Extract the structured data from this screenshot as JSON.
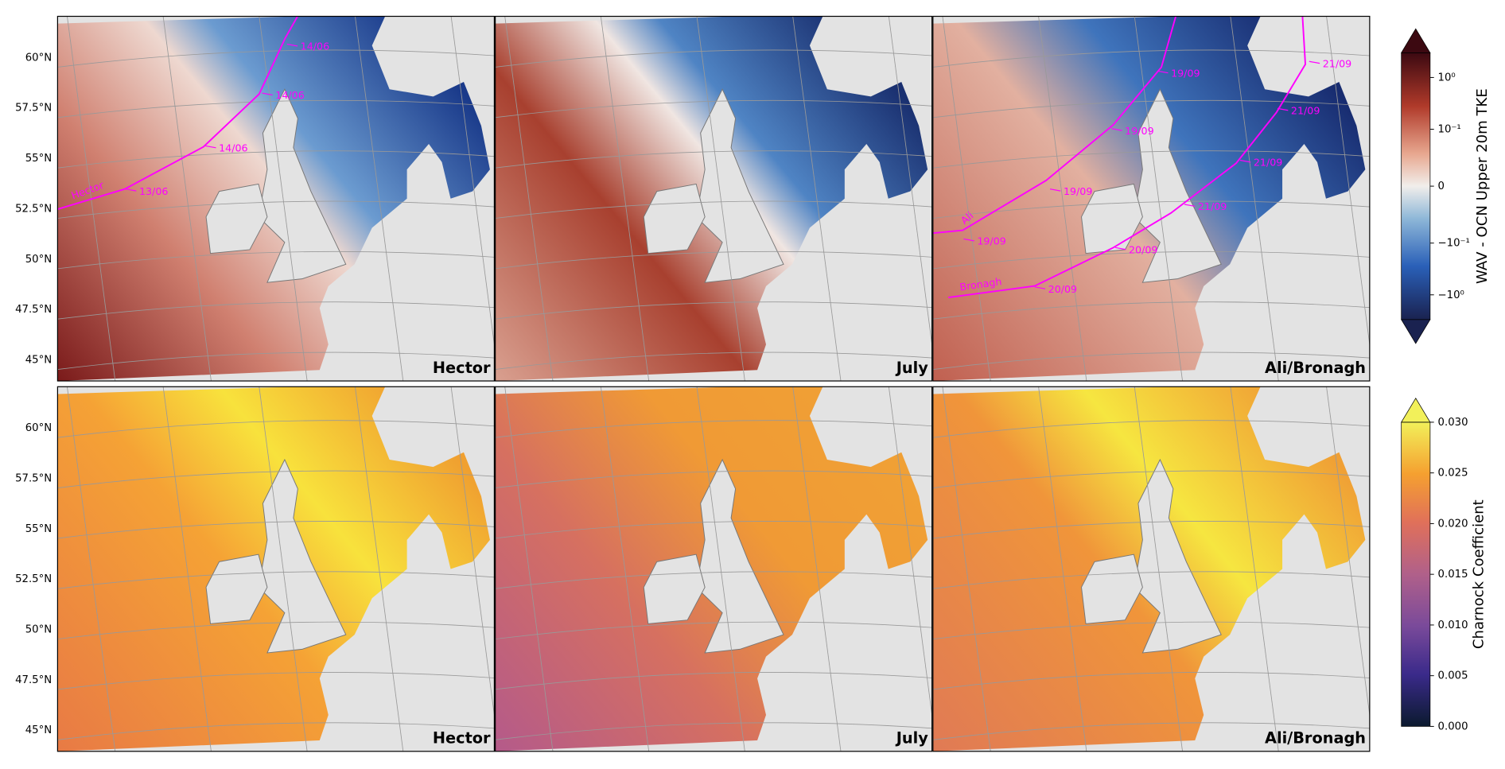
{
  "rows": [
    {
      "lat_labels": [
        "60°N",
        "57.5°N",
        "55°N",
        "52.5°N",
        "50°N",
        "47.5°N",
        "45°N"
      ],
      "panels": [
        {
          "label": "Hector",
          "tracks": [
            {
              "name": "Hector",
              "dates": [
                "14/06",
                "14/06",
                "14/06",
                "13/06"
              ]
            }
          ]
        },
        {
          "label": "July"
        },
        {
          "label": "Ali/Bronagh",
          "tracks": [
            {
              "name": "Ali",
              "dates": [
                "19/09",
                "19/09",
                "19/09",
                "19/09"
              ]
            },
            {
              "name": "Bronagh",
              "dates": [
                "21/09",
                "21/09",
                "21/09",
                "21/09",
                "20/09",
                "20/09"
              ]
            }
          ]
        }
      ],
      "colorbar": {
        "label": "WAV - OCN Upper 20m TKE",
        "scale": "symlog",
        "linthresh": 0.1,
        "lim": [
          -3,
          3
        ],
        "extend": "both",
        "ticks": [
          {
            "value": 1,
            "label": "10⁰"
          },
          {
            "value": 0.1,
            "label": "10⁻¹"
          },
          0,
          {
            "value": -0.1,
            "label": "−10⁻¹"
          },
          {
            "value": -1,
            "label": "−10⁰"
          }
        ]
      }
    },
    {
      "lat_labels": [
        "60°N",
        "57.5°N",
        "55°N",
        "52.5°N",
        "50°N",
        "47.5°N",
        "45°N"
      ],
      "panels": [
        {
          "label": "Hector"
        },
        {
          "label": "July"
        },
        {
          "label": "Ali/Bronagh"
        }
      ],
      "colorbar": {
        "label": "Charnock Coefficient",
        "scale": "linear",
        "lim": [
          0,
          0.03
        ],
        "extend": "max",
        "ticks": [
          {
            "value": 0,
            "label": "0.000"
          },
          {
            "value": 0.005,
            "label": "0.005"
          },
          {
            "value": 0.01,
            "label": "0.010"
          },
          {
            "value": 0.015,
            "label": "0.015"
          },
          {
            "value": 0.02,
            "label": "0.020"
          },
          {
            "value": 0.025,
            "label": "0.025"
          },
          {
            "value": 0.03,
            "label": "0.030"
          }
        ]
      }
    }
  ]
}
